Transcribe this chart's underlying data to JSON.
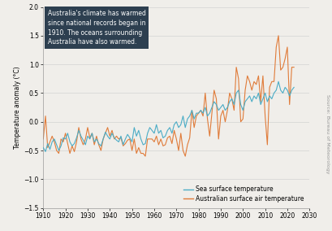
{
  "title": "",
  "ylabel": "Temperature anomaly (°C)",
  "xlabel": "",
  "xlim": [
    1910,
    2030
  ],
  "ylim": [
    -1.5,
    2.0
  ],
  "yticks": [
    -1.5,
    -1.0,
    -0.5,
    0.0,
    0.5,
    1.0,
    1.5,
    2.0
  ],
  "xticks": [
    1910,
    1920,
    1930,
    1940,
    1950,
    1960,
    1970,
    1980,
    1990,
    2000,
    2010,
    2020,
    2030
  ],
  "sst_color": "#4bacc6",
  "air_color": "#e07b39",
  "annotation_text": "Australia's climate has warmed\nsince national records began in\n1910. The oceans surrounding\nAustralia have also warmed.",
  "annotation_bg": "#2d3f50",
  "annotation_text_color": "#ffffff",
  "source_text": "Source: Bureau of Meteorology",
  "legend_labels": [
    "Sea surface temperature",
    "Australian surface air temperature"
  ],
  "bg_color": "#f0eeea",
  "sst_years": [
    1910,
    1911,
    1912,
    1913,
    1914,
    1915,
    1916,
    1917,
    1918,
    1919,
    1920,
    1921,
    1922,
    1923,
    1924,
    1925,
    1926,
    1927,
    1928,
    1929,
    1930,
    1931,
    1932,
    1933,
    1934,
    1935,
    1936,
    1937,
    1938,
    1939,
    1940,
    1941,
    1942,
    1943,
    1944,
    1945,
    1946,
    1947,
    1948,
    1949,
    1950,
    1951,
    1952,
    1953,
    1954,
    1955,
    1956,
    1957,
    1958,
    1959,
    1960,
    1961,
    1962,
    1963,
    1964,
    1965,
    1966,
    1967,
    1968,
    1969,
    1970,
    1971,
    1972,
    1973,
    1974,
    1975,
    1976,
    1977,
    1978,
    1979,
    1980,
    1981,
    1982,
    1983,
    1984,
    1985,
    1986,
    1987,
    1988,
    1989,
    1990,
    1991,
    1992,
    1993,
    1994,
    1995,
    1996,
    1997,
    1998,
    1999,
    2000,
    2001,
    2002,
    2003,
    2004,
    2005,
    2006,
    2007,
    2008,
    2009,
    2010,
    2011,
    2012,
    2013,
    2014,
    2015,
    2016,
    2017,
    2018,
    2019,
    2020,
    2021,
    2022,
    2023
  ],
  "sst_values": [
    -0.45,
    -0.52,
    -0.38,
    -0.48,
    -0.35,
    -0.3,
    -0.4,
    -0.5,
    -0.42,
    -0.28,
    -0.3,
    -0.2,
    -0.35,
    -0.42,
    -0.38,
    -0.28,
    -0.15,
    -0.25,
    -0.32,
    -0.4,
    -0.25,
    -0.3,
    -0.2,
    -0.35,
    -0.3,
    -0.38,
    -0.42,
    -0.3,
    -0.18,
    -0.25,
    -0.3,
    -0.2,
    -0.28,
    -0.32,
    -0.35,
    -0.25,
    -0.4,
    -0.3,
    -0.22,
    -0.28,
    -0.35,
    -0.1,
    -0.25,
    -0.15,
    -0.3,
    -0.4,
    -0.38,
    -0.2,
    -0.1,
    -0.15,
    -0.2,
    -0.05,
    -0.2,
    -0.15,
    -0.28,
    -0.25,
    -0.15,
    -0.1,
    -0.2,
    -0.05,
    -0.0,
    -0.1,
    -0.05,
    0.1,
    -0.1,
    0.05,
    0.1,
    0.2,
    0.05,
    0.15,
    0.15,
    0.2,
    0.15,
    0.25,
    0.1,
    0.15,
    0.25,
    0.35,
    0.3,
    0.2,
    0.25,
    0.3,
    0.2,
    0.25,
    0.35,
    0.4,
    0.3,
    0.5,
    0.55,
    0.3,
    0.2,
    0.35,
    0.4,
    0.45,
    0.35,
    0.45,
    0.4,
    0.5,
    0.3,
    0.4,
    0.5,
    0.35,
    0.45,
    0.4,
    0.5,
    0.55,
    0.7,
    0.55,
    0.5,
    0.6,
    0.55,
    0.45,
    0.55,
    0.6
  ],
  "air_years": [
    1910,
    1911,
    1912,
    1913,
    1914,
    1915,
    1916,
    1917,
    1918,
    1919,
    1920,
    1921,
    1922,
    1923,
    1924,
    1925,
    1926,
    1927,
    1928,
    1929,
    1930,
    1931,
    1932,
    1933,
    1934,
    1935,
    1936,
    1937,
    1938,
    1939,
    1940,
    1941,
    1942,
    1943,
    1944,
    1945,
    1946,
    1947,
    1948,
    1949,
    1950,
    1951,
    1952,
    1953,
    1954,
    1955,
    1956,
    1957,
    1958,
    1959,
    1960,
    1961,
    1962,
    1963,
    1964,
    1965,
    1966,
    1967,
    1968,
    1969,
    1970,
    1971,
    1972,
    1973,
    1974,
    1975,
    1976,
    1977,
    1978,
    1979,
    1980,
    1981,
    1982,
    1983,
    1984,
    1985,
    1986,
    1987,
    1988,
    1989,
    1990,
    1991,
    1992,
    1993,
    1994,
    1995,
    1996,
    1997,
    1998,
    1999,
    2000,
    2001,
    2002,
    2003,
    2004,
    2005,
    2006,
    2007,
    2008,
    2009,
    2010,
    2011,
    2012,
    2013,
    2014,
    2015,
    2016,
    2017,
    2018,
    2019,
    2020,
    2021,
    2022,
    2023
  ],
  "air_values": [
    -0.3,
    0.1,
    -0.45,
    -0.35,
    -0.25,
    -0.35,
    -0.5,
    -0.55,
    -0.3,
    -0.35,
    -0.2,
    -0.38,
    -0.55,
    -0.42,
    -0.52,
    -0.35,
    -0.1,
    -0.3,
    -0.4,
    -0.3,
    -0.1,
    -0.28,
    -0.2,
    -0.4,
    -0.25,
    -0.4,
    -0.5,
    -0.3,
    -0.2,
    -0.1,
    -0.25,
    -0.15,
    -0.3,
    -0.25,
    -0.3,
    -0.28,
    -0.42,
    -0.38,
    -0.32,
    -0.3,
    -0.5,
    -0.3,
    -0.55,
    -0.45,
    -0.55,
    -0.55,
    -0.6,
    -0.3,
    -0.3,
    -0.3,
    -0.35,
    -0.25,
    -0.4,
    -0.3,
    -0.42,
    -0.4,
    -0.28,
    -0.25,
    -0.38,
    -0.15,
    -0.3,
    -0.5,
    -0.2,
    -0.5,
    -0.6,
    -0.4,
    -0.28,
    0.2,
    -0.1,
    0.1,
    0.15,
    0.2,
    0.1,
    0.5,
    0.05,
    -0.25,
    0.15,
    0.55,
    0.4,
    -0.3,
    0.1,
    0.2,
    0.0,
    0.2,
    0.5,
    0.4,
    0.2,
    0.95,
    0.75,
    0.0,
    0.05,
    0.55,
    0.8,
    0.7,
    0.55,
    0.7,
    0.65,
    0.8,
    0.35,
    0.8,
    0.1,
    -0.4,
    0.6,
    0.7,
    0.7,
    1.3,
    1.5,
    0.9,
    0.95,
    1.1,
    1.3,
    0.3,
    0.95,
    0.95
  ]
}
